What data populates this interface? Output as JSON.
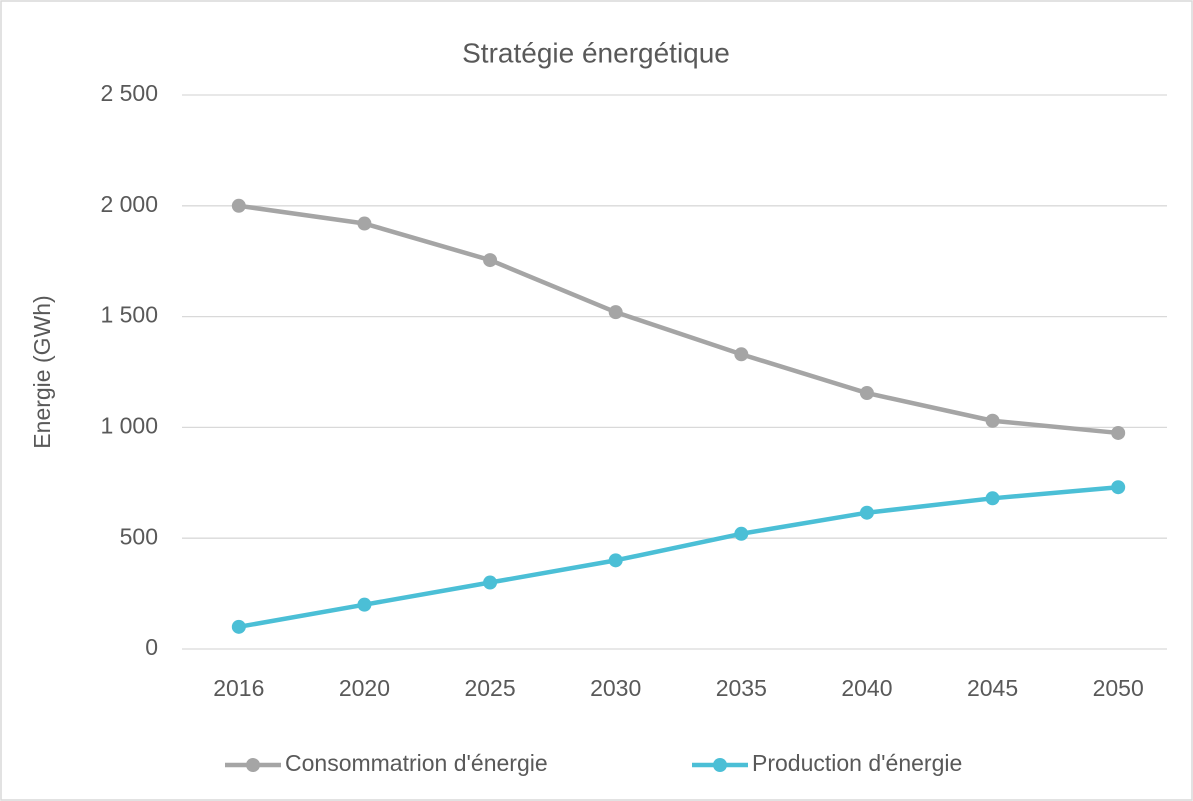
{
  "chart_data": {
    "type": "line",
    "title": "Stratégie énergétique",
    "y_label": "Energie (GWh)",
    "categories": [
      "2016",
      "2020",
      "2025",
      "2030",
      "2035",
      "2040",
      "2045",
      "2050"
    ],
    "series": [
      {
        "name": "Consommatrion d'énergie",
        "color": "#a5a5a5",
        "values": [
          2000,
          1920,
          1755,
          1520,
          1330,
          1155,
          1030,
          975
        ]
      },
      {
        "name": "Production d'énergie",
        "color": "#4bbfd6",
        "values": [
          100,
          200,
          300,
          400,
          520,
          615,
          680,
          730
        ]
      }
    ],
    "ylim": [
      0,
      2500
    ],
    "yticks": [
      0,
      500,
      {
        "value": 1000,
        "label": "1 000"
      },
      {
        "value": 1500,
        "label": "1 500"
      },
      {
        "value": 2000,
        "label": "2 000"
      },
      {
        "value": 2500,
        "label": "2 500"
      }
    ],
    "grid": true,
    "legend": "bottom"
  }
}
